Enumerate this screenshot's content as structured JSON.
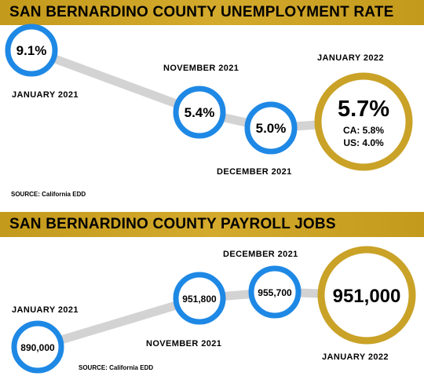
{
  "charts": {
    "top_title": "SAN BERNARDINO COUNTY UNEMPLOYMENT RATE",
    "bottom_title": "SAN BERNARDINO COUNTY PAYROLL JOBS",
    "source_top": "SOURCE: California EDD",
    "source_bottom": "SOURCE: California EDD"
  },
  "chart_data": [
    {
      "type": "line",
      "title": "SAN BERNARDINO COUNTY UNEMPLOYMENT RATE",
      "categories": [
        "JANUARY 2021",
        "NOVEMBER 2021",
        "DECEMBER 2021",
        "JANUARY 2022"
      ],
      "values": [
        9.1,
        5.4,
        5.0,
        5.7
      ],
      "labels": [
        "9.1%",
        "5.4%",
        "5.0%",
        "5.7%"
      ],
      "comparison": {
        "ca": "CA: 5.8%",
        "us": "US:  4.0%"
      },
      "source": "SOURCE: California EDD"
    },
    {
      "type": "line",
      "title": "SAN BERNARDINO COUNTY PAYROLL JOBS",
      "categories": [
        "JANUARY 2021",
        "NOVEMBER 2021",
        "DECEMBER 2021",
        "JANUARY 2022"
      ],
      "values": [
        890000,
        951800,
        955700,
        951000
      ],
      "labels": [
        "890,000",
        "951,800",
        "955,700",
        "951,000"
      ],
      "source": "SOURCE: California EDD"
    }
  ],
  "colors": {
    "blue": "#1e88e5",
    "gold": "#c9a227",
    "connector": "#d3d3d3",
    "banner": "#c9a227"
  }
}
